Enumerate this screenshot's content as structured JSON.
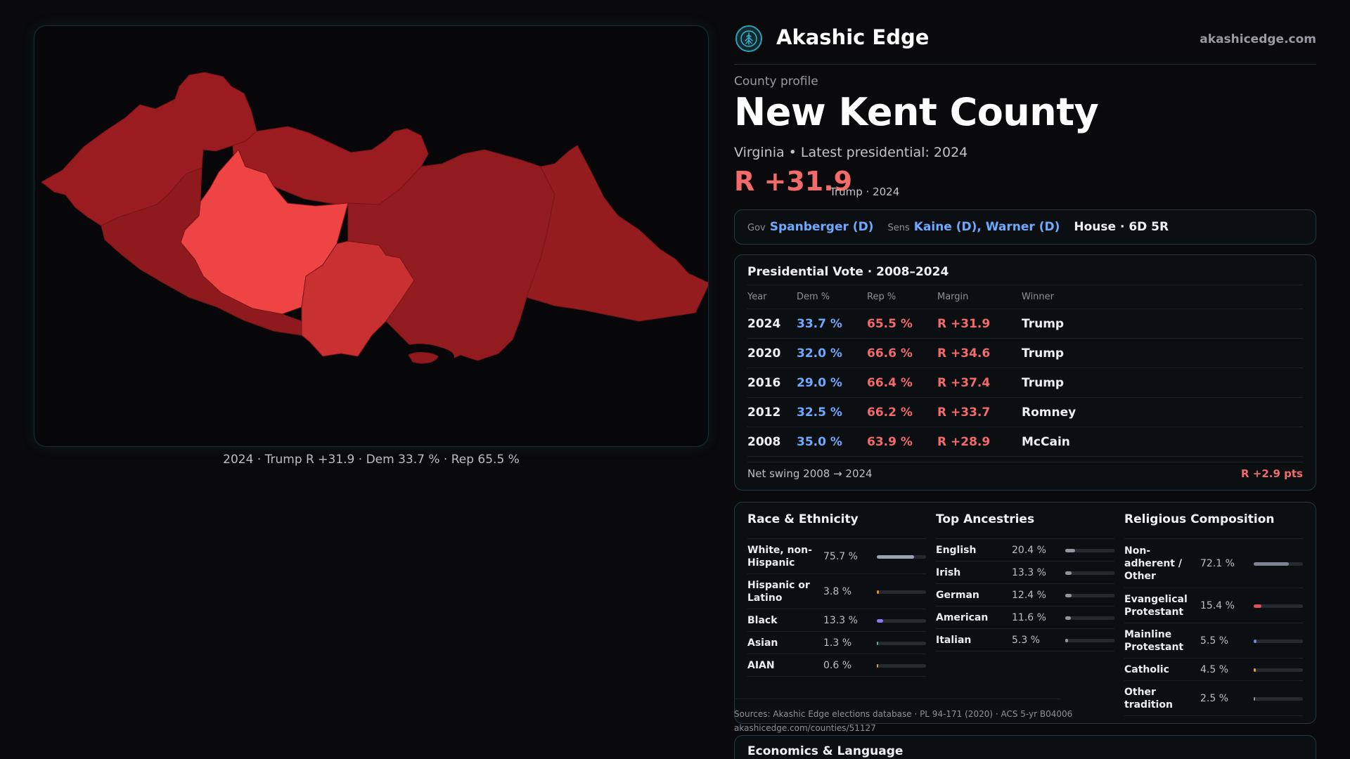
{
  "brand": {
    "name": "Akashic Edge",
    "url": "akashicedge.com",
    "logo_icon": "tree-logo-icon"
  },
  "map": {
    "caption": "2024 · Trump R +31.9 · Dem 33.7 % · Rep 65.5 %",
    "precincts": [
      {
        "id": "p1",
        "fill": "#9a1c20"
      },
      {
        "id": "p2",
        "fill": "#9a1c20"
      },
      {
        "id": "p3",
        "fill": "#ef4444"
      },
      {
        "id": "p4",
        "fill": "#8e1a1d"
      },
      {
        "id": "p5",
        "fill": "#c93032"
      },
      {
        "id": "p6",
        "fill": "#921b1f"
      },
      {
        "id": "p7",
        "fill": "#941c1f"
      }
    ]
  },
  "profile": {
    "kicker": "County profile",
    "title": "New Kent County",
    "subline": "Virginia • Latest presidential: 2024",
    "margin": "R +31.9",
    "margin_note": "Trump · 2024"
  },
  "officials": {
    "gov_label": "Gov",
    "gov_value": "Spanberger (D)",
    "sens_label": "Sens",
    "sens_value": "Kaine (D), Warner (D)",
    "house": "House · 6D 5R"
  },
  "presidential": {
    "title": "Presidential Vote · 2008–2024",
    "columns": [
      "Year",
      "Dem %",
      "Rep %",
      "Margin",
      "Winner"
    ],
    "rows": [
      [
        "2024",
        "33.7 %",
        "65.5 %",
        "R +31.9",
        "Trump"
      ],
      [
        "2020",
        "32.0 %",
        "66.6 %",
        "R +34.6",
        "Trump"
      ],
      [
        "2016",
        "29.0 %",
        "66.4 %",
        "R +37.4",
        "Trump"
      ],
      [
        "2012",
        "32.5 %",
        "66.2 %",
        "R +33.7",
        "Romney"
      ],
      [
        "2008",
        "35.0 %",
        "63.9 %",
        "R +28.9",
        "McCain"
      ]
    ],
    "swing_label": "Net swing 2008 → 2024",
    "swing_value": "R +2.9 pts"
  },
  "race": {
    "title": "Race & Ethnicity",
    "items": [
      {
        "name": "White, non-Hispanic",
        "pct": "75.7 %",
        "value": 75.7,
        "color": "#9aa3b5"
      },
      {
        "name": "Hispanic or Latino",
        "pct": "3.8 %",
        "value": 3.8,
        "color": "#e08a2c"
      },
      {
        "name": "Black",
        "pct": "13.3 %",
        "value": 13.3,
        "color": "#8a7cf0"
      },
      {
        "name": "Asian",
        "pct": "1.3 %",
        "value": 1.3,
        "color": "#3fb8a0"
      },
      {
        "name": "AIAN",
        "pct": "0.6 %",
        "value": 0.6,
        "color": "#c9a04a"
      }
    ]
  },
  "ancestry": {
    "title": "Top Ancestries",
    "items": [
      {
        "name": "English",
        "pct": "20.4 %",
        "value": 20.4,
        "color": "#8f96a3"
      },
      {
        "name": "Irish",
        "pct": "13.3 %",
        "value": 13.3,
        "color": "#8f96a3"
      },
      {
        "name": "German",
        "pct": "12.4 %",
        "value": 12.4,
        "color": "#8f96a3"
      },
      {
        "name": "American",
        "pct": "11.6 %",
        "value": 11.6,
        "color": "#8f96a3"
      },
      {
        "name": "Italian",
        "pct": "5.3 %",
        "value": 5.3,
        "color": "#8f96a3"
      }
    ]
  },
  "religion": {
    "title": "Religious Composition",
    "items": [
      {
        "name": "Non-adherent / Other",
        "pct": "72.1 %",
        "value": 72.1,
        "color": "#7d8594"
      },
      {
        "name": "Evangelical Protestant",
        "pct": "15.4 %",
        "value": 15.4,
        "color": "#e0505a"
      },
      {
        "name": "Mainline Protestant",
        "pct": "5.5 %",
        "value": 5.5,
        "color": "#5c8de8"
      },
      {
        "name": "Catholic",
        "pct": "4.5 %",
        "value": 4.5,
        "color": "#e0a030"
      },
      {
        "name": "Other tradition",
        "pct": "2.5 %",
        "value": 2.5,
        "color": "#8f96a3"
      }
    ]
  },
  "sources": {
    "line1": "Sources: Akashic Edge elections database · PL 94-171 (2020) · ACS 5-yr B04006",
    "line2": "akashicedge.com/counties/51127"
  },
  "economics": {
    "title": "Economics & Language"
  }
}
